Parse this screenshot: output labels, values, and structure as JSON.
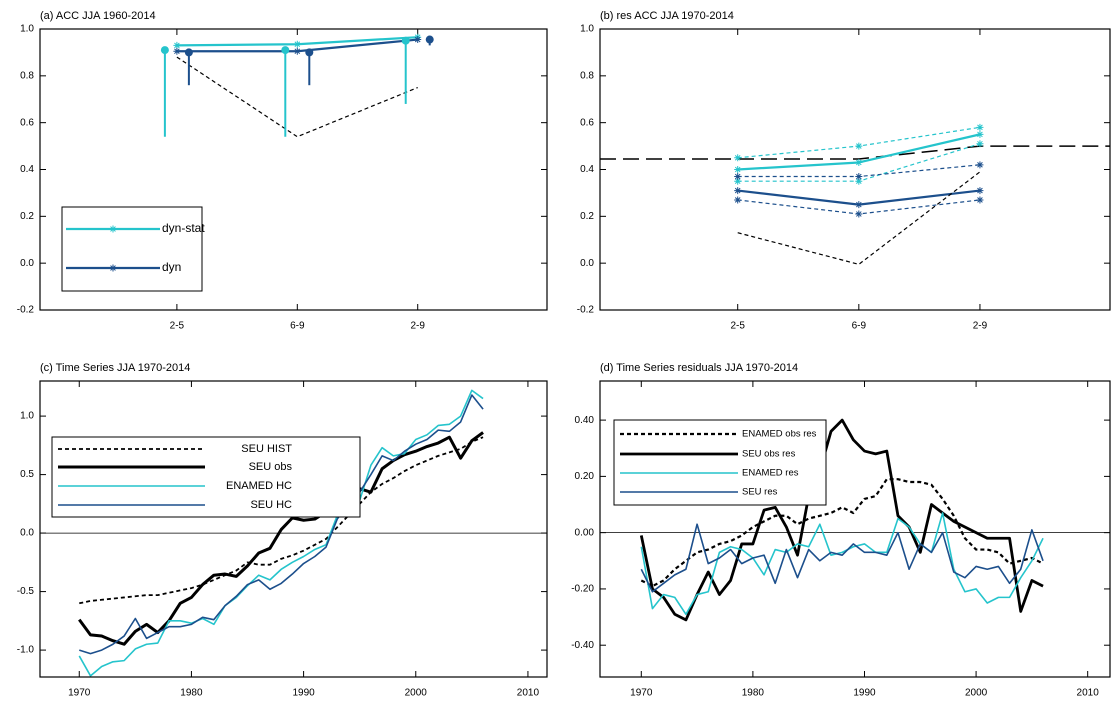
{
  "chart_data": [
    {
      "type": "line",
      "title": "(a) ACC JJA 1960-2014",
      "categories": [
        "2-5",
        "6-9",
        "2-9"
      ],
      "ylim": [
        -0.2,
        1.0
      ],
      "yticks": [
        {
          "value": 1.0,
          "label": "1.0"
        },
        0.8,
        0.6,
        0.4,
        0.2,
        {
          "value": 0.0,
          "label": "0.0"
        },
        -0.2
      ],
      "legend": "lower left",
      "series": [
        {
          "name": "dyn-stat",
          "color": "#25c4cc",
          "width": 2.2,
          "marker": "asterisk",
          "values": [
            0.93,
            0.935,
            0.965
          ]
        },
        {
          "name": "dyn",
          "color": "#1c4f8c",
          "width": 2.2,
          "marker": "asterisk",
          "values": [
            0.905,
            0.905,
            0.955
          ]
        },
        {
          "color": "#000000",
          "width": 1.2,
          "style": "dashed",
          "values": [
            0.88,
            0.54,
            0.75
          ]
        }
      ],
      "intervals": [
        {
          "color": "#25c4cc",
          "values": [
            0.91,
            0.91,
            0.95
          ],
          "lower": [
            0.54,
            0.54,
            0.68
          ]
        },
        {
          "color": "#1c4f8c",
          "values": [
            0.9,
            0.9,
            0.955
          ],
          "lower": [
            0.76,
            0.76,
            0.93
          ]
        }
      ]
    },
    {
      "type": "line",
      "title": "(b) res ACC JJA 1970-2014",
      "categories": [
        "2-5",
        "6-9",
        "2-9"
      ],
      "ylim": [
        -0.2,
        1.0
      ],
      "yticks": [
        {
          "value": 1.0,
          "label": "1.0"
        },
        0.8,
        0.6,
        0.4,
        0.2,
        {
          "value": 0.0,
          "label": "0.0"
        },
        -0.2
      ],
      "series": [
        {
          "color": "#25c4cc",
          "width": 2.2,
          "marker": "asterisk",
          "values": [
            0.4,
            0.43,
            0.55
          ]
        },
        {
          "color": "#25c4cc",
          "width": 1.2,
          "style": "dashed",
          "marker": "asterisk",
          "values": [
            0.45,
            0.5,
            0.58
          ]
        },
        {
          "color": "#25c4cc",
          "width": 1.2,
          "style": "dashed",
          "marker": "asterisk",
          "values": [
            0.35,
            0.35,
            0.51
          ]
        },
        {
          "color": "#1c4f8c",
          "width": 2.2,
          "marker": "asterisk",
          "values": [
            0.31,
            0.25,
            0.31
          ]
        },
        {
          "color": "#1c4f8c",
          "width": 1.2,
          "style": "dashed",
          "marker": "asterisk",
          "values": [
            0.37,
            0.37,
            0.42
          ]
        },
        {
          "color": "#1c4f8c",
          "width": 1.2,
          "style": "dashed",
          "marker": "asterisk",
          "values": [
            0.27,
            0.21,
            0.27
          ]
        },
        {
          "color": "#000000",
          "width": 1.2,
          "style": "dashed",
          "values": [
            0.13,
            -0.005,
            0.39
          ]
        }
      ],
      "reference": [
        0.445,
        0.445,
        0.5
      ]
    },
    {
      "type": "line",
      "title": "(c) Time Series JJA 1970-2014",
      "x": [
        1970,
        1971,
        1972,
        1973,
        1974,
        1975,
        1976,
        1977,
        1978,
        1979,
        1980,
        1981,
        1982,
        1983,
        1984,
        1985,
        1986,
        1987,
        1988,
        1989,
        1990,
        1991,
        1992,
        1993,
        1994,
        1995,
        1996,
        1997,
        1998,
        1999,
        2000,
        2001,
        2002,
        2003,
        2004,
        2005,
        2006
      ],
      "xlim": [
        1966.5,
        2011.7
      ],
      "xticks": [
        1970,
        1980,
        1990,
        2000,
        2010
      ],
      "ylim": [
        -1.23,
        1.3
      ],
      "yticks": [
        {
          "value": -1.0,
          "label": "-1.0"
        },
        -0.5,
        {
          "value": 0.0,
          "label": "0.0"
        },
        0.5,
        {
          "value": 1.0,
          "label": "1.0"
        }
      ],
      "zero_line": true,
      "legend": "upper left",
      "series": [
        {
          "name": "SEU HIST",
          "color": "#000000",
          "width": 1.8,
          "style": "dashed",
          "values": [
            -0.6,
            -0.58,
            -0.57,
            -0.56,
            -0.55,
            -0.54,
            -0.53,
            -0.53,
            -0.51,
            -0.49,
            -0.47,
            -0.44,
            -0.4,
            -0.36,
            -0.32,
            -0.25,
            -0.27,
            -0.27,
            -0.22,
            -0.19,
            -0.15,
            -0.1,
            -0.05,
            0.05,
            0.15,
            0.25,
            0.35,
            0.42,
            0.47,
            0.53,
            0.58,
            0.62,
            0.66,
            0.69,
            0.72,
            0.78,
            0.82
          ]
        },
        {
          "name": "SEU obs",
          "color": "#000000",
          "width": 3,
          "values": [
            -0.74,
            -0.87,
            -0.88,
            -0.92,
            -0.95,
            -0.84,
            -0.78,
            -0.85,
            -0.75,
            -0.6,
            -0.55,
            -0.44,
            -0.36,
            -0.35,
            -0.37,
            -0.28,
            -0.17,
            -0.13,
            0.03,
            0.13,
            0.11,
            0.12,
            0.18,
            0.26,
            0.27,
            0.38,
            0.35,
            0.55,
            0.62,
            0.67,
            0.7,
            0.74,
            0.77,
            0.82,
            0.64,
            0.79,
            0.86
          ]
        },
        {
          "name": "ENAMED HC",
          "color": "#25c4cc",
          "width": 1.6,
          "values": [
            -1.05,
            -1.22,
            -1.14,
            -1.1,
            -1.09,
            -0.99,
            -0.95,
            -0.94,
            -0.75,
            -0.75,
            -0.77,
            -0.73,
            -0.78,
            -0.62,
            -0.55,
            -0.45,
            -0.36,
            -0.4,
            -0.31,
            -0.25,
            -0.2,
            -0.14,
            -0.1,
            0.15,
            0.22,
            0.28,
            0.58,
            0.73,
            0.66,
            0.68,
            0.8,
            0.84,
            0.92,
            0.93,
            1.0,
            1.22,
            1.15
          ]
        },
        {
          "name": "SEU HC",
          "color": "#1c4f8c",
          "width": 1.6,
          "values": [
            -1.0,
            -1.03,
            -1.0,
            -0.95,
            -0.88,
            -0.73,
            -0.9,
            -0.85,
            -0.8,
            -0.8,
            -0.78,
            -0.72,
            -0.74,
            -0.62,
            -0.54,
            -0.44,
            -0.4,
            -0.48,
            -0.43,
            -0.35,
            -0.26,
            -0.2,
            -0.12,
            0.12,
            0.25,
            0.35,
            0.5,
            0.66,
            0.62,
            0.7,
            0.76,
            0.8,
            0.88,
            0.87,
            0.95,
            1.18,
            1.06
          ]
        }
      ]
    },
    {
      "type": "line",
      "title": "(d) Time Series residuals JJA 1970-2014",
      "x": [
        1970,
        1971,
        1972,
        1973,
        1974,
        1975,
        1976,
        1977,
        1978,
        1979,
        1980,
        1981,
        1982,
        1983,
        1984,
        1985,
        1986,
        1987,
        1988,
        1989,
        1990,
        1991,
        1992,
        1993,
        1994,
        1995,
        1996,
        1997,
        1998,
        1999,
        2000,
        2001,
        2002,
        2003,
        2004,
        2005,
        2006
      ],
      "xlim": [
        1966.3,
        2012.0
      ],
      "xticks": [
        1970,
        1980,
        1990,
        2000,
        2010
      ],
      "ylim": [
        -0.513,
        0.539
      ],
      "yticks": [
        {
          "value": -0.4,
          "label": "-0.40"
        },
        {
          "value": -0.2,
          "label": "-0.20"
        },
        {
          "value": 0.0,
          "label": "0.00"
        },
        {
          "value": 0.2,
          "label": "0.20"
        },
        {
          "value": 0.4,
          "label": "0.40"
        }
      ],
      "zero_line": true,
      "legend": "upper left",
      "series": [
        {
          "name": "ENAMED obs res",
          "color": "#000000",
          "width": 2.2,
          "style": "dashed",
          "values": [
            -0.17,
            -0.19,
            -0.17,
            -0.13,
            -0.1,
            -0.07,
            -0.06,
            -0.04,
            -0.03,
            -0.01,
            0.02,
            0.04,
            0.06,
            0.06,
            0.03,
            0.05,
            0.06,
            0.07,
            0.09,
            0.07,
            0.12,
            0.13,
            0.19,
            0.19,
            0.18,
            0.18,
            0.17,
            0.12,
            0.06,
            -0.02,
            -0.06,
            -0.06,
            -0.07,
            -0.11,
            -0.1,
            -0.09,
            -0.11
          ]
        },
        {
          "name": "SEU obs res",
          "color": "#000000",
          "width": 2.8,
          "values": [
            -0.01,
            -0.2,
            -0.23,
            -0.29,
            -0.31,
            -0.22,
            -0.14,
            -0.22,
            -0.17,
            -0.04,
            -0.04,
            0.08,
            0.09,
            0.02,
            -0.08,
            0.13,
            0.22,
            0.36,
            0.4,
            0.33,
            0.29,
            0.28,
            0.29,
            0.06,
            0.02,
            -0.07,
            0.1,
            0.07,
            0.04,
            0.02,
            0.0,
            -0.02,
            -0.02,
            -0.02,
            -0.28,
            -0.17,
            -0.19
          ]
        },
        {
          "name": "ENAMED res",
          "color": "#25c4cc",
          "width": 1.6,
          "values": [
            -0.05,
            -0.27,
            -0.22,
            -0.23,
            -0.29,
            -0.22,
            -0.21,
            -0.07,
            -0.05,
            -0.06,
            -0.09,
            -0.15,
            -0.06,
            -0.07,
            -0.04,
            -0.05,
            0.03,
            -0.08,
            -0.07,
            -0.05,
            -0.04,
            -0.07,
            -0.07,
            0.05,
            0.02,
            -0.04,
            -0.07,
            0.07,
            -0.13,
            -0.21,
            -0.2,
            -0.25,
            -0.23,
            -0.23,
            -0.16,
            -0.1,
            -0.02
          ]
        },
        {
          "name": "SEU res",
          "color": "#1c4f8c",
          "width": 1.6,
          "values": [
            -0.13,
            -0.21,
            -0.18,
            -0.15,
            -0.13,
            0.03,
            -0.11,
            -0.09,
            -0.06,
            -0.11,
            -0.09,
            -0.08,
            -0.18,
            -0.06,
            -0.16,
            -0.06,
            -0.1,
            -0.07,
            -0.08,
            -0.04,
            -0.07,
            -0.07,
            -0.08,
            0.0,
            -0.13,
            -0.04,
            -0.07,
            0.0,
            -0.14,
            -0.16,
            -0.12,
            -0.13,
            -0.12,
            -0.18,
            -0.13,
            0.01,
            -0.1
          ]
        }
      ]
    }
  ]
}
